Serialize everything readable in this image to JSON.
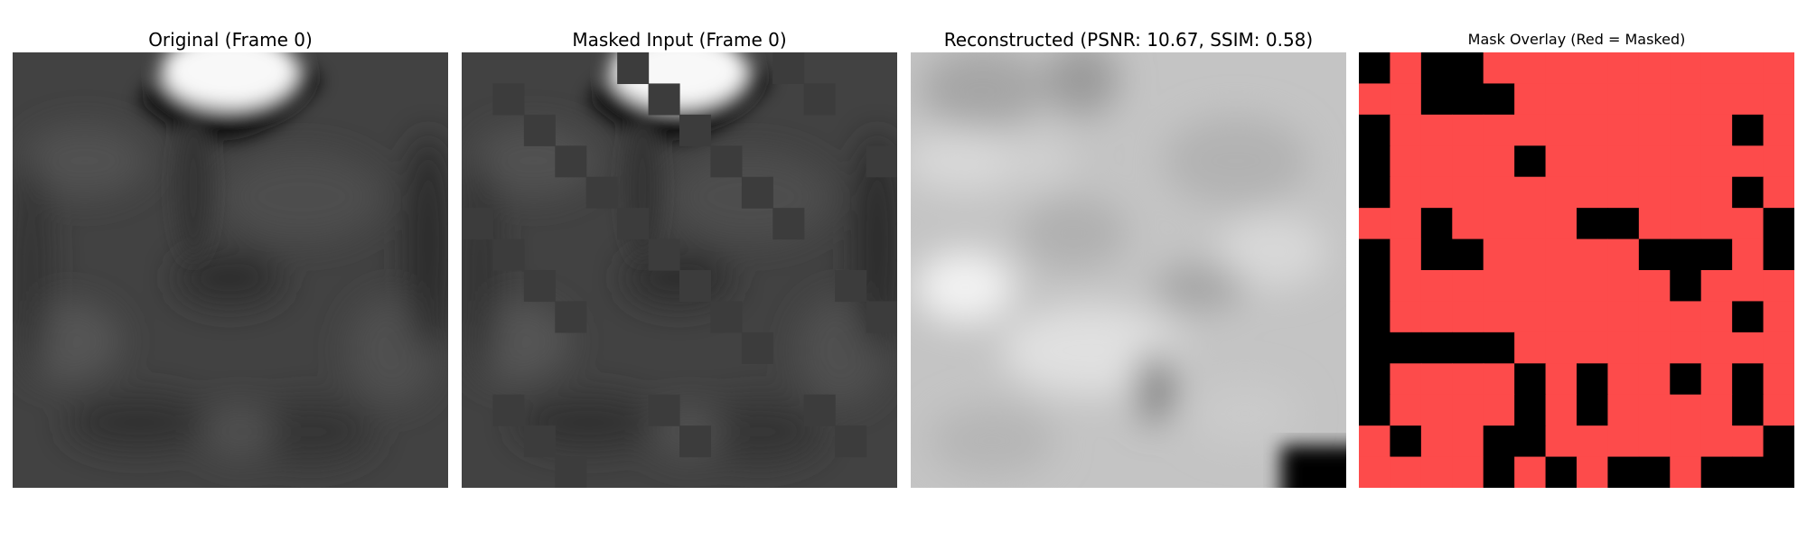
{
  "figure": {
    "panels": [
      {
        "id": "original",
        "title": "Original (Frame 0)"
      },
      {
        "id": "masked",
        "title": "Masked Input (Frame 0)"
      },
      {
        "id": "reconstructed",
        "title": "Reconstructed (PSNR: 10.67, SSIM: 0.58)"
      },
      {
        "id": "mask-overlay",
        "title": "Mask Overlay (Red = Masked)"
      }
    ]
  },
  "colors": {
    "masked": "#fd4b4b",
    "visible": "#000000",
    "masked_input_fill": "#3c3c3c"
  },
  "mask_grid": {
    "size": 14,
    "rows": [
      "01001111111111",
      "11000111111111",
      "01111111111101",
      "01111011111111",
      "01111111111101",
      "11011110011110",
      "01001111100010",
      "01111111110111",
      "01111111111101",
      "00000111111111",
      "01111010110101",
      "01111010111101",
      "10110011111110",
      "11110101001000"
    ]
  }
}
